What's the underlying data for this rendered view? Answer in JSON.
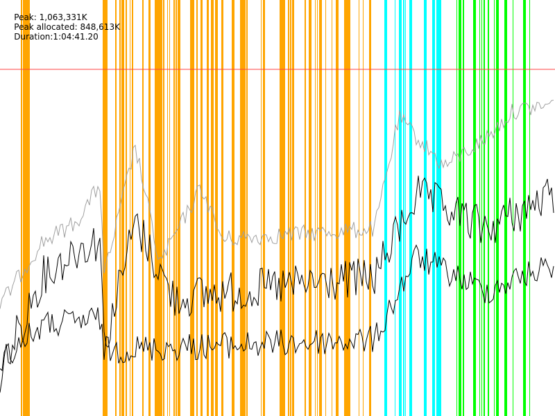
{
  "header": {
    "items": [
      "Peak: 1,063,331K",
      "Peak allocated: 848,613K",
      "Duration:1:04:41.20"
    ]
  }
}
